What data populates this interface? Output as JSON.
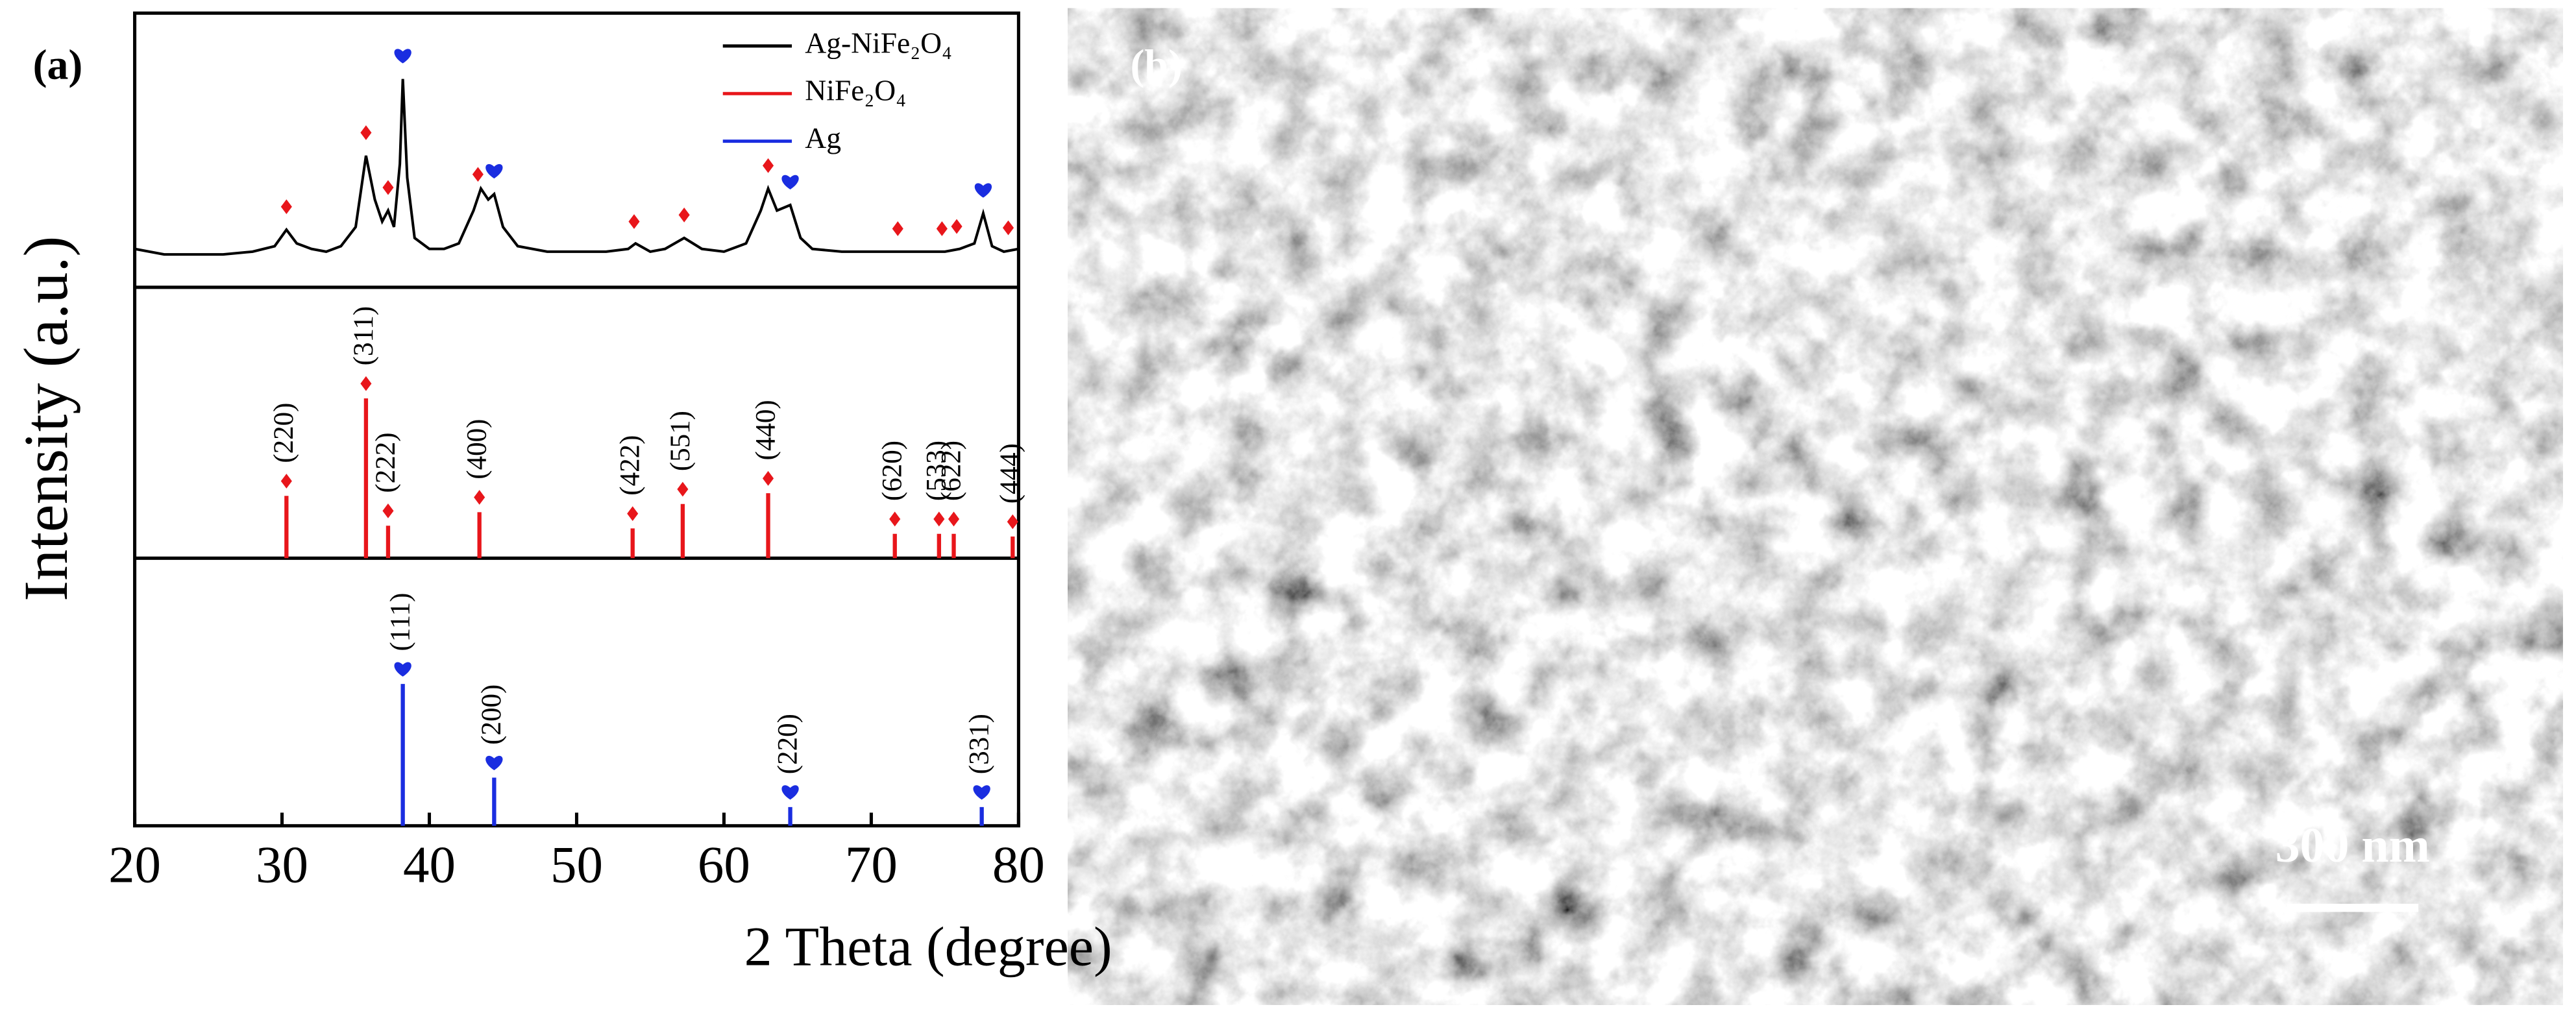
{
  "chart_data": {
    "type": "xrd",
    "panel_label": "(a)",
    "xlabel": "2 Theta (degree)",
    "ylabel": "Intensity (a.u.)",
    "xlim": [
      20,
      80
    ],
    "xticks": [
      20,
      30,
      40,
      50,
      60,
      70,
      80
    ],
    "ylim": [
      0,
      100
    ],
    "series": [
      {
        "name": "Ag-NiFe₂O₄",
        "color": "#000000",
        "x": [
          20,
          22,
          24,
          26,
          28,
          29.5,
          30.3,
          31,
          32,
          33,
          34,
          35,
          35.7,
          36.3,
          36.8,
          37.2,
          37.6,
          38,
          38.2,
          38.5,
          39,
          40,
          41,
          42,
          43,
          43.5,
          44,
          44.4,
          45,
          46,
          48,
          50,
          52,
          53.5,
          54,
          55,
          56,
          57.3,
          58.5,
          60,
          61.5,
          62.5,
          63,
          63.6,
          64.5,
          65.2,
          66,
          68,
          70,
          72,
          74,
          75,
          76,
          77,
          77.6,
          78.2,
          79,
          80
        ],
        "values": [
          14,
          12,
          12,
          12,
          13,
          15,
          21,
          16,
          14,
          13,
          15,
          22,
          48,
          32,
          24,
          28,
          22,
          45,
          76,
          40,
          18,
          14,
          14,
          16,
          28,
          36,
          32,
          34,
          22,
          15,
          13,
          13,
          13,
          14,
          16,
          13,
          14,
          18,
          14,
          13,
          16,
          28,
          36,
          28,
          30,
          18,
          14,
          13,
          13,
          13,
          13,
          13,
          14,
          16,
          27,
          15,
          13,
          14
        ]
      },
      {
        "name": "NiFe₂O₄",
        "color": "#e8161b",
        "x": [
          30.3,
          35.7,
          37.2,
          43.4,
          53.8,
          57.2,
          63.0,
          71.6,
          74.6,
          75.6,
          79.6
        ],
        "values": [
          23,
          59,
          12,
          17,
          11,
          20,
          24,
          9,
          9,
          9,
          8
        ],
        "labels": [
          "(220)",
          "(311)",
          "(222)",
          "(400)",
          "(422)",
          "(551)",
          "(440)",
          "(620)",
          "(533)",
          "(622)",
          "(444)"
        ]
      },
      {
        "name": "Ag",
        "color": "#1a2de0",
        "x": [
          38.2,
          44.4,
          64.5,
          77.5
        ],
        "values": [
          53,
          18,
          7,
          7
        ],
        "labels": [
          "(111)",
          "(200)",
          "(220)",
          "(331)"
        ]
      }
    ],
    "markers": [
      {
        "shape": "diamond",
        "color": "#e8161b",
        "x": [
          30.3,
          35.7,
          37.2,
          43.3,
          53.9,
          57.3,
          63.0,
          71.8,
          74.8,
          75.8,
          79.3
        ]
      },
      {
        "shape": "heart",
        "color": "#1a2de0",
        "x": [
          38.2,
          44.4,
          64.5,
          77.6
        ]
      }
    ],
    "legend": "upper right"
  },
  "panel_b": {
    "label": "(b)",
    "scale_bar": "300 nm"
  }
}
